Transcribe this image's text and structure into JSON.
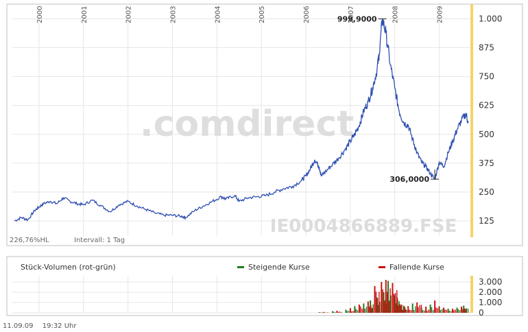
{
  "colors": {
    "price_line": "#2e4fb0",
    "grid": "#e6e6e6",
    "axis_band": "#f5d36b",
    "frame": "#bfbfbf",
    "watermark": "#dedede",
    "watermark_accent": "#f3ddad",
    "volume_up": "#1f7a1f",
    "volume_down": "#cc1111"
  },
  "footer": {
    "date": "11.09.09",
    "time": "19:32 Uhr"
  },
  "chart_data": [
    {
      "type": "line",
      "title": "",
      "watermark": ".comdirect",
      "isin_label": "IE0004866889.FSE",
      "info_left": "226,76%HL",
      "info_interval": "Intervall: 1 Tag",
      "x_ticks": [
        "2000",
        "2001",
        "2002",
        "2003",
        "2004",
        "2005",
        "2006",
        "2007",
        "2008",
        "2009"
      ],
      "y_ticks": [
        {
          "value": 125,
          "label": "125"
        },
        {
          "value": 250,
          "label": "250"
        },
        {
          "value": 375,
          "label": "375"
        },
        {
          "value": 500,
          "label": "500"
        },
        {
          "value": 625,
          "label": "625"
        },
        {
          "value": 750,
          "label": "750"
        },
        {
          "value": 875,
          "label": "875"
        },
        {
          "value": 1000,
          "label": "1.000"
        }
      ],
      "ylim": [
        60,
        1040
      ],
      "xlim": [
        1999.4,
        2009.7
      ],
      "grid": true,
      "annotations": [
        {
          "x": 2007.72,
          "y": 999.9,
          "label": "999,9000"
        },
        {
          "x": 2008.9,
          "y": 306.0,
          "label": "306,0000"
        }
      ],
      "series": [
        {
          "x": [
            1999.45,
            1999.6,
            1999.75,
            1999.9,
            2000.0,
            2000.1,
            2000.25,
            2000.4,
            2000.55,
            2000.7,
            2000.85,
            2001.0,
            2001.2,
            2001.4,
            2001.6,
            2001.8,
            2002.0,
            2002.2,
            2002.4,
            2002.6,
            2002.8,
            2003.0,
            2003.2,
            2003.3,
            2003.5,
            2003.7,
            2003.9,
            2004.1,
            2004.2,
            2004.4,
            2004.5,
            2004.7,
            2004.9,
            2005.1,
            2005.3,
            2005.5,
            2005.7,
            2005.9,
            2006.0,
            2006.1,
            2006.2,
            2006.3,
            2006.35,
            2006.45,
            2006.6,
            2006.75,
            2006.9,
            2007.0,
            2007.1,
            2007.2,
            2007.3,
            2007.4,
            2007.5,
            2007.6,
            2007.65,
            2007.72,
            2007.8,
            2007.9,
            2008.0,
            2008.1,
            2008.2,
            2008.3,
            2008.4,
            2008.5,
            2008.6,
            2008.7,
            2008.8,
            2008.9,
            2009.0,
            2009.1,
            2009.2,
            2009.3,
            2009.4,
            2009.5,
            2009.6,
            2009.65
          ],
          "y": [
            125,
            140,
            130,
            170,
            185,
            200,
            210,
            200,
            225,
            210,
            200,
            195,
            215,
            190,
            165,
            195,
            210,
            190,
            175,
            160,
            150,
            150,
            145,
            140,
            170,
            190,
            210,
            230,
            220,
            235,
            210,
            225,
            230,
            235,
            250,
            265,
            275,
            300,
            320,
            350,
            390,
            360,
            320,
            340,
            370,
            400,
            440,
            470,
            500,
            540,
            600,
            640,
            700,
            780,
            850,
            999.9,
            940,
            800,
            700,
            600,
            550,
            540,
            480,
            420,
            380,
            360,
            330,
            306,
            380,
            360,
            420,
            470,
            520,
            560,
            590,
            550
          ]
        }
      ]
    },
    {
      "type": "bar",
      "title": "Stück-Volumen (rot-grün)",
      "legend": [
        {
          "name": "Steigende Kurse",
          "color": "#1f7a1f"
        },
        {
          "name": "Fallende Kurse",
          "color": "#cc1111"
        }
      ],
      "y_ticks": [
        {
          "value": 0,
          "label": "0"
        },
        {
          "value": 1000,
          "label": "1.000"
        },
        {
          "value": 2000,
          "label": "2.000"
        },
        {
          "value": 3000,
          "label": "3.000"
        }
      ],
      "ylim": [
        0,
        3600
      ],
      "xlim": [
        1999.4,
        2009.7
      ],
      "series": [
        {
          "name": "Steigende Kurse",
          "x": [
            2006.3,
            2006.6,
            2006.9,
            2007.1,
            2007.3,
            2007.45,
            2007.6,
            2007.75,
            2007.85,
            2008.0,
            2008.1,
            2008.2,
            2008.4,
            2008.6,
            2008.8,
            2009.0,
            2009.2,
            2009.4,
            2009.55
          ],
          "values": [
            60,
            150,
            300,
            650,
            900,
            1200,
            1500,
            2000,
            3100,
            1700,
            900,
            700,
            900,
            500,
            800,
            600,
            400,
            500,
            700
          ]
        },
        {
          "name": "Fallende Kurse",
          "x": [
            2006.4,
            2006.7,
            2007.0,
            2007.2,
            2007.4,
            2007.55,
            2007.7,
            2007.8,
            2007.95,
            2008.05,
            2008.15,
            2008.3,
            2008.5,
            2008.7,
            2008.9,
            2009.1,
            2009.3,
            2009.5
          ],
          "values": [
            80,
            200,
            450,
            800,
            1100,
            2600,
            3000,
            3200,
            2900,
            1500,
            800,
            650,
            1000,
            600,
            1200,
            500,
            400,
            600
          ]
        }
      ]
    }
  ]
}
